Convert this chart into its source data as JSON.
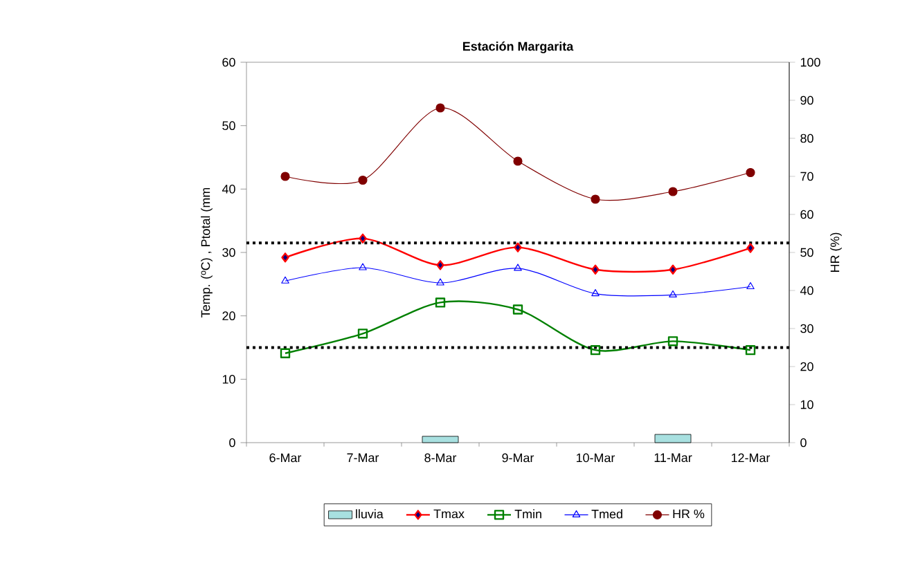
{
  "chart_data": {
    "type": "line",
    "title": "Estación Margarita",
    "ylabel": "Temp. (ºC) , Ptotal (mm",
    "y2label": "HR (%)",
    "categories": [
      "6-Mar",
      "7-Mar",
      "8-Mar",
      "9-Mar",
      "10-Mar",
      "11-Mar",
      "12-Mar"
    ],
    "ylim": [
      0,
      60
    ],
    "yticks": [
      0,
      10,
      20,
      30,
      40,
      50,
      60
    ],
    "y2lim": [
      0,
      100
    ],
    "y2ticks": [
      0,
      10,
      20,
      30,
      40,
      50,
      60,
      70,
      80,
      90,
      100
    ],
    "series": [
      {
        "name": "lluvia",
        "type": "bar",
        "color": "#a8e0e0",
        "values": [
          0,
          0,
          1.0,
          0,
          0,
          1.3,
          0
        ]
      },
      {
        "name": "Tmax",
        "color": "#ff0000",
        "marker": "diamond",
        "values": [
          29.2,
          32.2,
          28.0,
          30.8,
          27.3,
          27.3,
          30.7
        ]
      },
      {
        "name": "Tmin",
        "color": "#008000",
        "marker": "square",
        "values": [
          14.1,
          17.2,
          22.1,
          21.0,
          14.6,
          16.0,
          14.6
        ]
      },
      {
        "name": "Tmed",
        "color": "#0000ff",
        "marker": "triangle",
        "values": [
          25.5,
          27.6,
          25.2,
          27.5,
          23.5,
          23.3,
          24.6
        ]
      },
      {
        "name": "HR %",
        "color": "#800000",
        "marker": "circle",
        "axis": "y2",
        "values": [
          70,
          69,
          88,
          74,
          64,
          66,
          71
        ]
      }
    ],
    "ref_lines": [
      {
        "axis": "y",
        "value": 31.5,
        "color": "#000000",
        "line_style": "dotted"
      },
      {
        "axis": "y",
        "value": 15,
        "color": "#000000",
        "line_style": "dotted"
      }
    ],
    "grid": false,
    "legend": "bottom"
  }
}
